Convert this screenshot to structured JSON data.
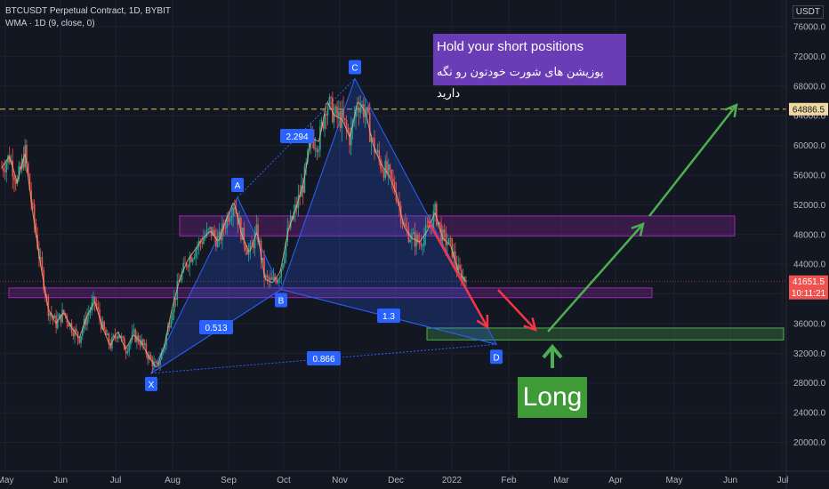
{
  "legend": {
    "symbol": "BTCUSDT Perpetual Contract, 1D, BYBIT",
    "indicator": "WMA · 1D (9, close, 0)"
  },
  "currency": "USDT",
  "annotation": {
    "line1": "Hold your short positions",
    "line2": "پوزیشن های شورت خودتون رو نگه دارید"
  },
  "long_label": "Long",
  "colors": {
    "background": "#131722",
    "up": "#26a69a",
    "down": "#ef5350",
    "pattern_fill": "#2962ff",
    "zone_purple": "#9c27b0",
    "zone_green": "#4caf50",
    "arrow_red": "#f23645",
    "arrow_green": "#4caf50",
    "dashed_level": "#e5c15b",
    "wma": "#f0b27a"
  },
  "chart_data": {
    "type": "candlestick",
    "xlabel": "",
    "ylabel": "",
    "x_ticks": [
      "May",
      "Jun",
      "Jul",
      "Aug",
      "Sep",
      "Oct",
      "Nov",
      "Dec",
      "2022",
      "Feb",
      "Mar",
      "Apr",
      "May",
      "Jun",
      "Jul"
    ],
    "y_ticks": [
      20000,
      24000,
      28000,
      32000,
      36000,
      40000,
      44000,
      48000,
      52000,
      56000,
      60000,
      64000,
      68000,
      72000,
      76000
    ],
    "ylim": [
      19000,
      78000
    ],
    "price_labels": {
      "target": "64886.5",
      "current": "41651.5",
      "countdown": "10:11:21"
    },
    "harmonic_points": [
      {
        "label": "X",
        "value": 29300
      },
      {
        "label": "A",
        "value": 53000
      },
      {
        "label": "B",
        "value": 40600
      },
      {
        "label": "C",
        "value": 69000
      },
      {
        "label": "D",
        "value": 33200
      }
    ],
    "ratios": [
      "2.294",
      "0.513",
      "0.866",
      "1.3"
    ],
    "zones": [
      {
        "name": "upper-resistance",
        "from": 47800,
        "to": 50500
      },
      {
        "name": "support",
        "from": 39500,
        "to": 40800
      },
      {
        "name": "long-entry",
        "from": 33800,
        "to": 35400
      }
    ],
    "series_closes_approx": [
      57000,
      58500,
      55000,
      59000,
      51000,
      44000,
      38000,
      36000,
      37500,
      35500,
      34000,
      37000,
      39000,
      35500,
      33000,
      35000,
      32500,
      34500,
      33500,
      31500,
      30000,
      33000,
      38000,
      42000,
      44500,
      46000,
      47500,
      48500,
      47000,
      50000,
      52500,
      48000,
      45500,
      48500,
      42000,
      41500,
      43000,
      48500,
      51500,
      55000,
      61000,
      60500,
      66000,
      64000,
      63500,
      61000,
      66000,
      64500,
      60000,
      57500,
      56000,
      53500,
      49000,
      47500,
      47000,
      48500,
      51000,
      47500,
      46500,
      43000,
      41651.5
    ]
  }
}
